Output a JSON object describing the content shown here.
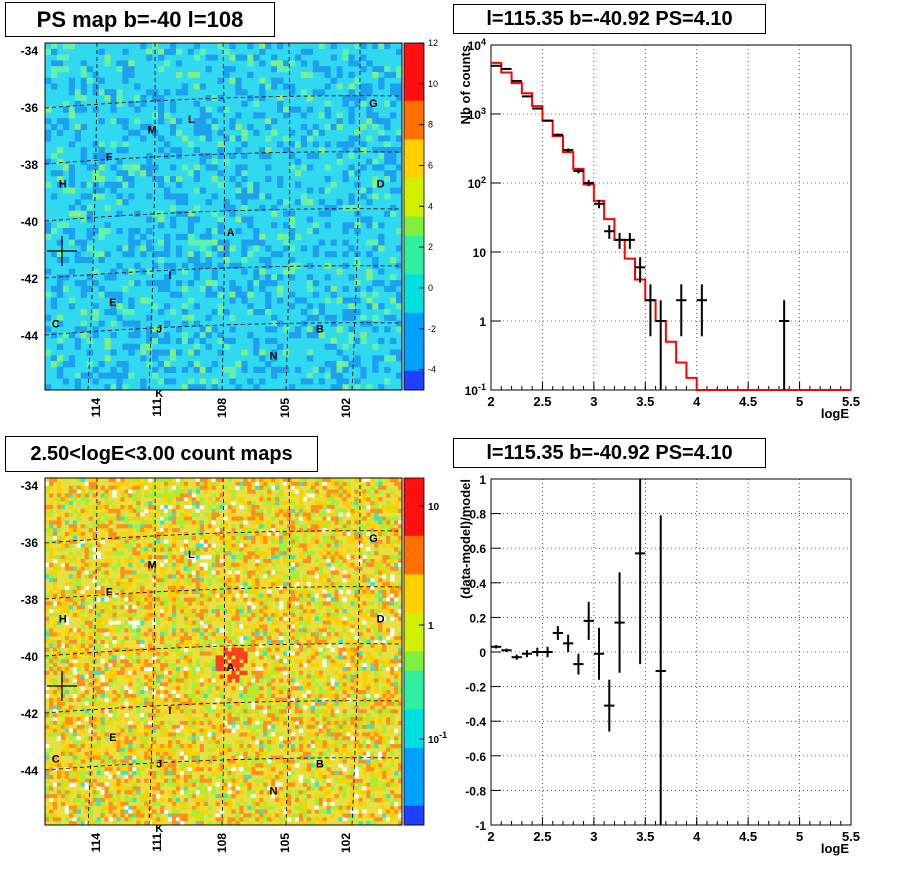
{
  "chart_data": [
    {
      "type": "heatmap",
      "title": "PS map b=-40 l=108",
      "xticks": [
        "114",
        "111",
        "108",
        "105",
        "102"
      ],
      "yticks": [
        "-34",
        "-36",
        "-38",
        "-40",
        "-42",
        "-44"
      ],
      "colorbar_ticks": [
        "12",
        "10",
        "8",
        "6",
        "4",
        "2",
        "0",
        "-2",
        "-4"
      ],
      "zlim": [
        -5,
        12
      ],
      "sources": [
        "G",
        "M",
        "L",
        "F",
        "H",
        "D",
        "A",
        "I",
        "E",
        "C",
        "J",
        "B",
        "N",
        "K"
      ]
    },
    {
      "type": "line",
      "title": "l=115.35 b=-40.92 PS=4.10",
      "xlabel": "logE",
      "ylabel": "Nb of counts",
      "xlim": [
        2,
        5.5
      ],
      "ylim": [
        0.1,
        10000
      ],
      "log_y": true,
      "xticks": [
        "2",
        "2.5",
        "3",
        "3.5",
        "4",
        "4.5",
        "5",
        "5.5"
      ],
      "yticks": [
        "10^-1",
        "1",
        "10",
        "10^2",
        "10^3",
        "10^4"
      ],
      "model": {
        "name": "model",
        "edges": [
          2.0,
          2.1,
          2.2,
          2.3,
          2.4,
          2.5,
          2.6,
          2.7,
          2.8,
          2.9,
          3.0,
          3.1,
          3.2,
          3.3,
          3.4,
          3.5,
          3.6,
          3.7,
          3.8,
          3.9,
          4.0,
          4.1,
          5.5
        ],
        "values": [
          5500,
          4000,
          2800,
          2000,
          1300,
          800,
          480,
          280,
          160,
          95,
          55,
          30,
          15,
          8,
          4,
          2,
          1,
          0.5,
          0.25,
          0.15,
          0.1,
          0.1
        ]
      },
      "data": {
        "name": "data",
        "x": [
          2.05,
          2.15,
          2.25,
          2.35,
          2.45,
          2.55,
          2.65,
          2.75,
          2.85,
          2.95,
          3.05,
          3.15,
          3.25,
          3.35,
          3.45,
          3.55,
          3.65,
          3.85,
          4.05,
          4.85
        ],
        "y": [
          5000,
          4500,
          3000,
          1800,
          1200,
          800,
          500,
          300,
          150,
          100,
          50,
          20,
          15,
          15,
          6,
          2,
          1,
          2,
          2,
          1
        ],
        "err": [
          71,
          67,
          55,
          42,
          35,
          28,
          22,
          17,
          12,
          10,
          7,
          4.5,
          3.9,
          3.9,
          2.4,
          1.4,
          1,
          1.4,
          1.4,
          1
        ]
      }
    },
    {
      "type": "heatmap",
      "title": "2.50<logE<3.00 count maps",
      "xticks": [
        "114",
        "111",
        "108",
        "105",
        "102"
      ],
      "yticks": [
        "-34",
        "-36",
        "-38",
        "-40",
        "-42",
        "-44"
      ],
      "colorbar_ticks": [
        "10",
        "1",
        "10^-1"
      ],
      "sources": [
        "G",
        "M",
        "L",
        "F",
        "H",
        "D",
        "A",
        "I",
        "E",
        "C",
        "J",
        "B",
        "N",
        "K"
      ]
    },
    {
      "type": "scatter",
      "title": "l=115.35 b=-40.92 PS=4.10",
      "xlabel": "logE",
      "ylabel": "(data-model)/model",
      "xlim": [
        2,
        5.5
      ],
      "ylim": [
        -1,
        1
      ],
      "xticks": [
        "2",
        "2.5",
        "3",
        "3.5",
        "4",
        "4.5",
        "5",
        "5.5"
      ],
      "yticks": [
        "1",
        "0.8",
        "0.6",
        "0.4",
        "0.2",
        "0",
        "-0.2",
        "-0.4",
        "-0.6",
        "-0.8",
        "-1"
      ],
      "x": [
        2.05,
        2.15,
        2.25,
        2.35,
        2.45,
        2.55,
        2.65,
        2.75,
        2.85,
        2.95,
        3.05,
        3.15,
        3.25,
        3.45,
        3.65
      ],
      "y": [
        0.03,
        0.01,
        -0.03,
        -0.01,
        0.0,
        0.0,
        0.11,
        0.05,
        -0.07,
        0.18,
        -0.01,
        -0.31,
        0.17,
        0.57,
        -0.11
      ],
      "err": [
        0.01,
        0.01,
        0.015,
        0.02,
        0.025,
        0.03,
        0.04,
        0.05,
        0.06,
        0.11,
        0.15,
        0.15,
        0.29,
        0.64,
        0.9
      ]
    }
  ]
}
